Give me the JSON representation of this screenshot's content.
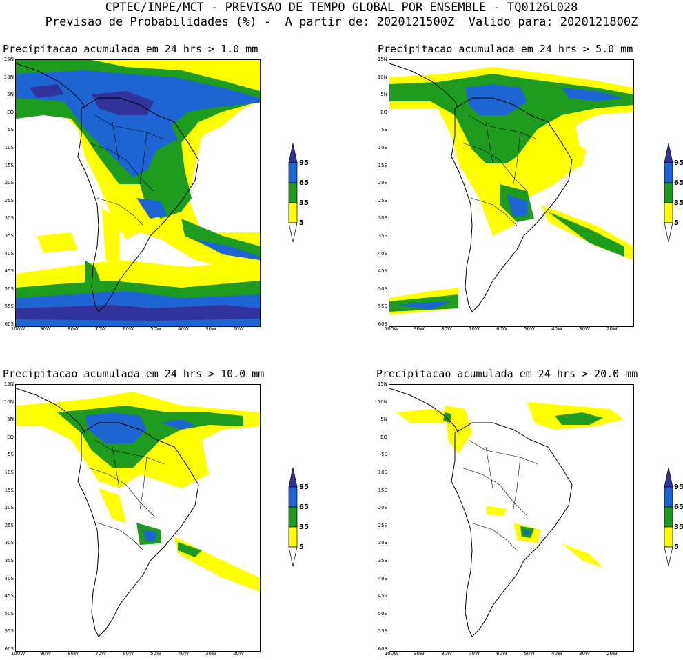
{
  "header": {
    "line1": "CPTEC/INPE/MCT - PREVISAO DE TEMPO GLOBAL POR ENSEMBLE - TQ0126L028",
    "line2": "Previsao de Probabilidades (%) -  A partir de: 2020121500Z  Valido para: 2020121800Z"
  },
  "colors": {
    "c5": "#ffff00",
    "c35": "#1e9b1e",
    "c65": "#1e64d2",
    "c95": "#32329b",
    "coast": "#000000"
  },
  "legend": {
    "labels": [
      "95",
      "65",
      "35",
      "5"
    ]
  },
  "axes": {
    "lat_labels": [
      "15N",
      "10N",
      "5N",
      "EQ",
      "5S",
      "10S",
      "15S",
      "20S",
      "25S",
      "30S",
      "35S",
      "40S",
      "45S",
      "50S",
      "55S",
      "60S"
    ],
    "lon_labels": [
      "100W",
      "90W",
      "80W",
      "70W",
      "60W",
      "50W",
      "40W",
      "30W",
      "20W"
    ]
  },
  "panels": [
    {
      "id": "p1",
      "title": "Precipitacao acumulada em 24 hrs > 1.0 mm"
    },
    {
      "id": "p2",
      "title": "Precipitacao acumulada em 24 hrs > 5.0 mm"
    },
    {
      "id": "p3",
      "title": "Precipitacao acumulada em 24 hrs > 10.0 mm"
    },
    {
      "id": "p4",
      "title": "Precipitacao acumulada em 24 hrs > 20.0 mm"
    }
  ]
}
